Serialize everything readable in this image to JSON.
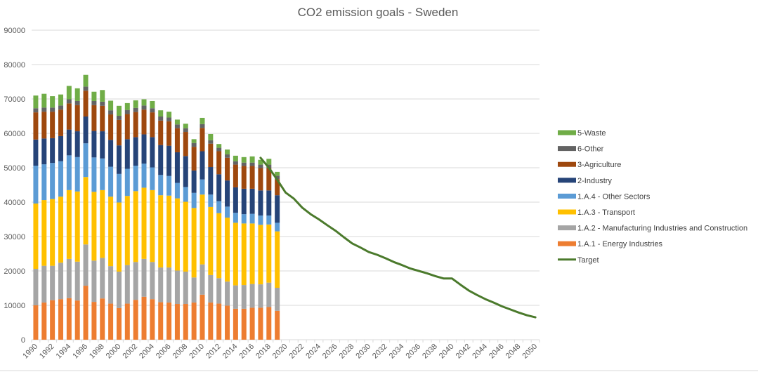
{
  "chart_data": {
    "type": "bar",
    "subtype": "stacked-bar-with-line",
    "title": "CO2 emission goals - Sweden",
    "xlabel": "",
    "ylabel": "",
    "ylim": [
      0,
      90000
    ],
    "yticks": [
      0,
      10000,
      20000,
      30000,
      40000,
      50000,
      60000,
      70000,
      80000,
      90000
    ],
    "ytick_labels": [
      "0",
      "10000",
      "20000",
      "30000",
      "40000",
      "50000",
      "60000",
      "70000",
      "80000",
      "90000"
    ],
    "grid": true,
    "legend_position": "right",
    "categories": [
      1990,
      1991,
      1992,
      1993,
      1994,
      1995,
      1996,
      1997,
      1998,
      1999,
      2000,
      2001,
      2002,
      2003,
      2004,
      2005,
      2006,
      2007,
      2008,
      2009,
      2010,
      2011,
      2012,
      2013,
      2014,
      2015,
      2016,
      2017,
      2018,
      2019,
      2020,
      2021,
      2022,
      2023,
      2024,
      2025,
      2026,
      2027,
      2028,
      2029,
      2030,
      2031,
      2032,
      2033,
      2034,
      2035,
      2036,
      2037,
      2038,
      2039,
      2040,
      2041,
      2042,
      2043,
      2044,
      2045,
      2046,
      2047,
      2048,
      2049,
      2050
    ],
    "xtick_labels": [
      "1990",
      "1992",
      "1994",
      "1996",
      "1998",
      "2000",
      "2002",
      "2004",
      "2006",
      "2008",
      "2010",
      "2012",
      "2014",
      "2016",
      "2018",
      "2020",
      "2022",
      "2024",
      "2026",
      "2028",
      "2030",
      "2032",
      "2034",
      "2036",
      "2038",
      "2040",
      "2042",
      "2044",
      "2046",
      "2048",
      "2050"
    ],
    "series": [
      {
        "name": "1.A.1 - Energy Industries",
        "type": "bar",
        "color": "#ed7d31",
        "values": [
          10000,
          10800,
          11500,
          11800,
          12100,
          11400,
          15700,
          11000,
          12000,
          10500,
          9200,
          10500,
          11600,
          12500,
          11800,
          10900,
          10800,
          10400,
          10400,
          10800,
          13100,
          10800,
          10500,
          9900,
          9000,
          9000,
          9300,
          9300,
          9500,
          8400
        ]
      },
      {
        "name": "1.A.2 - Manufacturing Industries and Construction",
        "type": "bar",
        "color": "#a5a5a5",
        "values": [
          10600,
          10700,
          10000,
          10600,
          11400,
          11300,
          12000,
          12000,
          11800,
          10900,
          10600,
          11200,
          11000,
          11000,
          10800,
          10100,
          10200,
          9700,
          9400,
          7300,
          8800,
          8000,
          7400,
          7000,
          6800,
          6900,
          6900,
          6800,
          7100,
          6700
        ]
      },
      {
        "name": "1.A.3 - Transport",
        "type": "bar",
        "color": "#ffc000",
        "values": [
          19000,
          19100,
          19400,
          19200,
          20000,
          20400,
          19600,
          20000,
          19700,
          20200,
          20100,
          20100,
          20600,
          20700,
          20900,
          21000,
          20900,
          21000,
          20300,
          20200,
          20300,
          19800,
          18900,
          18600,
          18200,
          17900,
          17600,
          17300,
          16900,
          16400
        ]
      },
      {
        "name": "1.A.4 - Other Sectors",
        "type": "bar",
        "color": "#5b9bd5",
        "values": [
          11000,
          10400,
          10500,
          10300,
          10100,
          10000,
          9800,
          10000,
          9200,
          8700,
          8300,
          7900,
          7400,
          7000,
          6600,
          5900,
          5700,
          4500,
          4300,
          4400,
          4400,
          3600,
          3500,
          3200,
          2900,
          2700,
          2800,
          2700,
          2600,
          2500
        ]
      },
      {
        "name": "2-Industry",
        "type": "bar",
        "color": "#264478",
        "values": [
          7600,
          7500,
          7200,
          7300,
          7500,
          7500,
          7800,
          7700,
          7900,
          7800,
          8300,
          8600,
          8300,
          8500,
          8800,
          8700,
          8800,
          8900,
          9000,
          6500,
          8200,
          8000,
          7800,
          7600,
          7400,
          7400,
          7300,
          7300,
          7300,
          8000
        ]
      },
      {
        "name": "3-Agriculture",
        "type": "bar",
        "color": "#9e480e",
        "values": [
          7900,
          7800,
          7700,
          7700,
          7600,
          7600,
          7500,
          7500,
          7400,
          7400,
          7400,
          7300,
          7300,
          7200,
          7200,
          7100,
          7100,
          7000,
          7000,
          6900,
          6800,
          6800,
          6700,
          6600,
          6600,
          6600,
          6600,
          6500,
          6500,
          4700
        ]
      },
      {
        "name": "6-Other",
        "type": "bar",
        "color": "#636363",
        "values": [
          1200,
          1200,
          1200,
          1200,
          1200,
          1200,
          1200,
          1200,
          1200,
          1200,
          1200,
          1200,
          1200,
          1200,
          1200,
          1200,
          1100,
          1100,
          1100,
          1100,
          1100,
          1000,
          1000,
          1000,
          1000,
          1000,
          1000,
          1000,
          1000,
          1000
        ]
      },
      {
        "name": "5-Waste",
        "type": "bar",
        "color": "#70ad47",
        "values": [
          3700,
          4000,
          3300,
          3200,
          3900,
          3700,
          3400,
          2700,
          3400,
          2800,
          2900,
          2000,
          2200,
          1800,
          2100,
          1800,
          1700,
          1400,
          1300,
          1100,
          1800,
          1800,
          1100,
          1400,
          1600,
          1600,
          1800,
          1400,
          1700,
          1100
        ]
      },
      {
        "name": "Target",
        "type": "line",
        "color": "#4b7a2c",
        "start_year": 2017,
        "values": [
          52900,
          50000,
          46500,
          42800,
          41000,
          38400,
          36500,
          35000,
          33300,
          31700,
          29800,
          28000,
          26800,
          25500,
          24700,
          23700,
          22600,
          21700,
          20700,
          20000,
          19300,
          18500,
          17800,
          17800,
          16000,
          14300,
          13000,
          11800,
          10800,
          9700,
          8800,
          7900,
          7100,
          6500
        ]
      }
    ],
    "legend": [
      "5-Waste",
      "6-Other",
      "3-Agriculture",
      "2-Industry",
      "1.A.4 - Other Sectors",
      "1.A.3 - Transport",
      "1.A.2 - Manufacturing Industries and Construction",
      "1.A.1 - Energy Industries",
      "Target"
    ]
  }
}
